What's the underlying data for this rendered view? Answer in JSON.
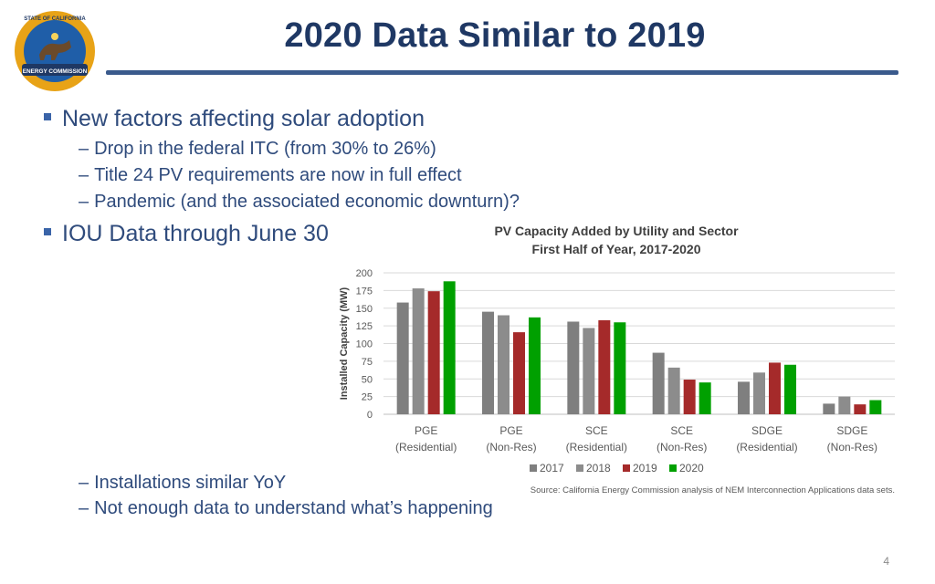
{
  "slide": {
    "title": "2020 Data Similar to 2019",
    "page_number": "4",
    "logo": {
      "text_top": "STATE OF CALIFORNIA",
      "text_bottom": "ENERGY COMMISSION"
    }
  },
  "bullets": {
    "b1": "New factors affecting solar adoption",
    "b1_sub": [
      "Drop in the federal ITC (from 30% to 26%)",
      "Title 24 PV requirements are now in full effect",
      "Pandemic (and the associated economic downturn)?"
    ],
    "b2": "IOU Data through June 30",
    "b2_sub": [
      "Installations similar YoY",
      "Not enough data to understand what’s happening"
    ],
    "dash": "–"
  },
  "colors": {
    "title": "#1f3864",
    "text": "#2f4b7c",
    "rule": "#3a5a8c",
    "s2017": "#7f7f7f",
    "s2018": "#8c8c8c",
    "s2019": "#a52a2a",
    "s2020": "#00a000"
  },
  "chart_data": {
    "type": "bar",
    "title": "PV Capacity Added by Utility and Sector",
    "subtitle": "First Half of Year, 2017-2020",
    "ylabel": "Installed Capacity (MW)",
    "xlabel": "",
    "ylim": [
      0,
      200
    ],
    "yticks": [
      0,
      25,
      50,
      75,
      100,
      125,
      150,
      175,
      200
    ],
    "grid": true,
    "legend_position": "bottom",
    "categories": [
      [
        "PGE",
        "(Residential)"
      ],
      [
        "PGE",
        "(Non-Res)"
      ],
      [
        "SCE",
        "(Residential)"
      ],
      [
        "SCE",
        "(Non-Res)"
      ],
      [
        "SDGE",
        "(Residential)"
      ],
      [
        "SDGE",
        "(Non-Res)"
      ]
    ],
    "series": [
      {
        "name": "2017",
        "values": [
          158,
          145,
          131,
          87,
          46,
          15
        ]
      },
      {
        "name": "2018",
        "values": [
          178,
          140,
          122,
          66,
          59,
          25
        ]
      },
      {
        "name": "2019",
        "values": [
          174,
          116,
          133,
          49,
          73,
          14
        ]
      },
      {
        "name": "2020",
        "values": [
          188,
          137,
          130,
          45,
          70,
          20
        ]
      }
    ],
    "source": "Source: California Energy Commission analysis of NEM Interconnection Applications data sets."
  }
}
